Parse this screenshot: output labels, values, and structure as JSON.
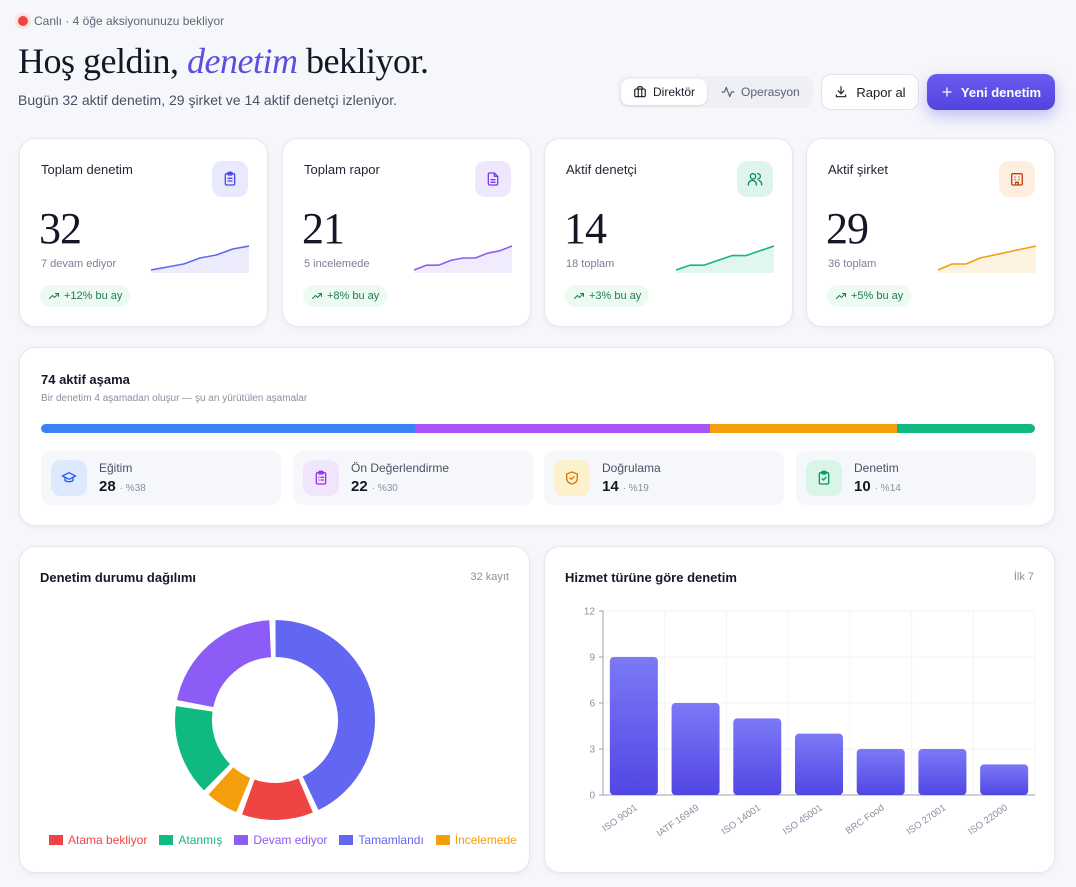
{
  "header": {
    "live_text": "Canlı · 4 öğe aksiyonunuzu bekliyor",
    "title_pre": "Hoş geldin,",
    "title_em": "denetim",
    "title_post": "bekliyor.",
    "subtitle": "Bugün 32 aktif denetim, 29 şirket ve 14 aktif denetçi izleniyor.",
    "view_director": "Direktör",
    "view_operations": "Operasyon",
    "report_button": "Rapor al",
    "new_button": "Yeni denetim"
  },
  "kpis": [
    {
      "label": "Toplam denetim",
      "value": "32",
      "sub": "7 devam ediyor",
      "badge": "+12% bu ay",
      "color": "#6366f1",
      "icon": "clipboard-icon",
      "spark": [
        2,
        3,
        4,
        6,
        7,
        9,
        10
      ]
    },
    {
      "label": "Toplam rapor",
      "value": "21",
      "sub": "5 incelemede",
      "badge": "+8% bu ay",
      "color": "#8b5cf6",
      "icon": "document-icon",
      "spark": [
        1,
        3,
        3,
        5,
        6,
        6,
        8,
        9,
        11
      ]
    },
    {
      "label": "Aktif denetçi",
      "value": "14",
      "sub": "18 toplam",
      "badge": "+3% bu ay",
      "color": "#10b981",
      "icon": "users-icon",
      "spark": [
        1,
        2,
        2,
        3,
        4,
        4,
        5,
        6
      ]
    },
    {
      "label": "Aktif şirket",
      "value": "29",
      "sub": "36 toplam",
      "badge": "+5% bu ay",
      "color": "#f59e0b",
      "icon": "building-icon",
      "spark": [
        1,
        2,
        2,
        3,
        3.5,
        4,
        4.5,
        5
      ]
    }
  ],
  "stages": {
    "title": "74 aktif aşama",
    "subtitle": "Bir denetim 4 aşamadan oluşur — şu an yürütülen aşamalar",
    "items": [
      {
        "name": "Eğitim",
        "count": "28",
        "pct": "· %38",
        "share": 0.38,
        "color": "#3b82f6",
        "icon": "graduation-cap-icon"
      },
      {
        "name": "Ön Değerlendirme",
        "count": "22",
        "pct": "· %30",
        "share": 0.3,
        "color": "#a855f7",
        "icon": "clipboard-list-icon"
      },
      {
        "name": "Doğrulama",
        "count": "14",
        "pct": "· %19",
        "share": 0.19,
        "color": "#f59e0b",
        "icon": "shield-check-icon"
      },
      {
        "name": "Denetim",
        "count": "10",
        "pct": "· %14",
        "share": 0.14,
        "color": "#10b981",
        "icon": "clipboard-check-icon"
      }
    ]
  },
  "status_chart": {
    "title": "Denetim durumu dağılımı",
    "meta": "32 kayıt",
    "chart_data": {
      "type": "pie",
      "categories": [
        "Atama bekliyor",
        "Atanmış",
        "Devam ediyor",
        "Tamamlandı",
        "İncelemede"
      ],
      "values": [
        4,
        5,
        7,
        14,
        2
      ],
      "colors": [
        "#ef4444",
        "#10b981",
        "#8b5cf6",
        "#6366f1",
        "#f59e0b"
      ]
    }
  },
  "service_chart": {
    "title": "Hizmet türüne göre denetim",
    "meta": "İlk 7",
    "chart_data": {
      "type": "bar",
      "categories": [
        "ISO 9001",
        "IATF 16949",
        "ISO 14001",
        "ISO 45001",
        "BRC Food",
        "ISO 27001",
        "ISO 22000"
      ],
      "values": [
        9,
        6,
        5,
        4,
        3,
        3,
        2
      ],
      "ylim": [
        0,
        12
      ],
      "yticks": [
        "0",
        "3",
        "6",
        "9",
        "12"
      ]
    }
  }
}
